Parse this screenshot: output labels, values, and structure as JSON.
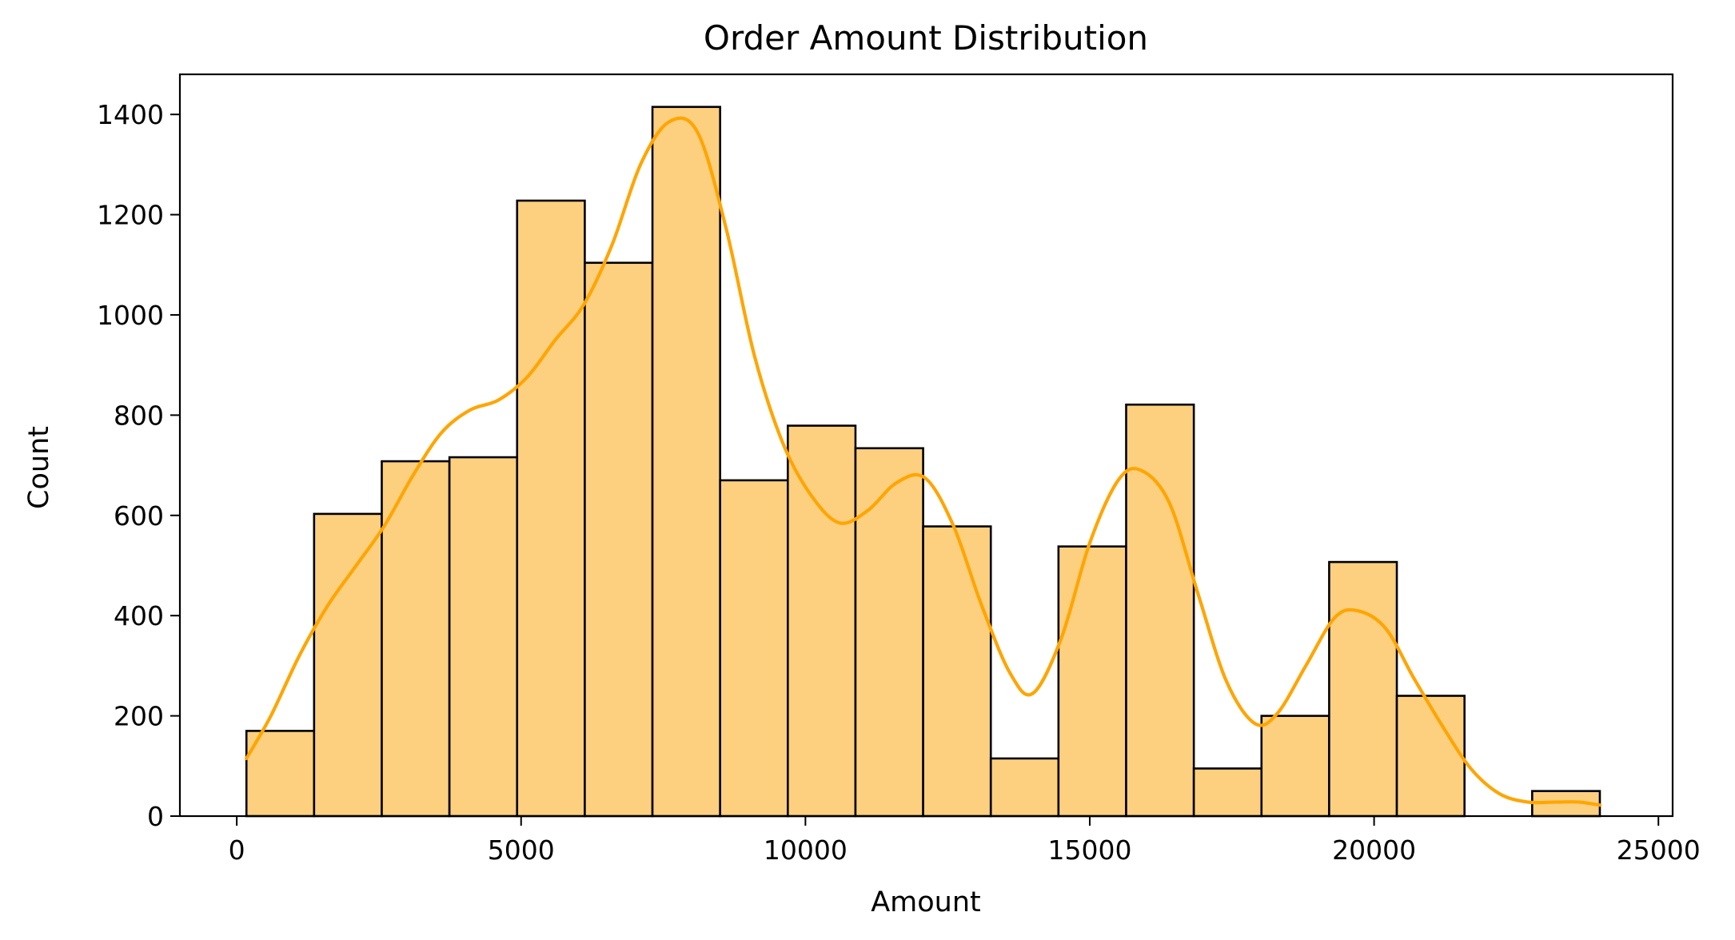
{
  "chart_data": {
    "type": "histogram",
    "title": "Order Amount Distribution",
    "xlabel": "Amount",
    "ylabel": "Count",
    "xlim": [
      -1000,
      25250
    ],
    "ylim": [
      0,
      1480
    ],
    "xticks": [
      0,
      5000,
      10000,
      15000,
      20000,
      25000
    ],
    "yticks": [
      0,
      200,
      400,
      600,
      800,
      1000,
      1200,
      1400
    ],
    "bar_fill": "#fdd080",
    "bar_edge": "#000000",
    "kde_color": "#ffa500",
    "bins": [
      {
        "x0": 170,
        "x1": 1360,
        "count": 170
      },
      {
        "x0": 1360,
        "x1": 2550,
        "count": 603
      },
      {
        "x0": 2550,
        "x1": 3740,
        "count": 708
      },
      {
        "x0": 3740,
        "x1": 4930,
        "count": 716
      },
      {
        "x0": 4930,
        "x1": 6120,
        "count": 1228
      },
      {
        "x0": 6120,
        "x1": 7310,
        "count": 1104
      },
      {
        "x0": 7310,
        "x1": 8500,
        "count": 1415
      },
      {
        "x0": 8500,
        "x1": 9690,
        "count": 670
      },
      {
        "x0": 9690,
        "x1": 10880,
        "count": 779
      },
      {
        "x0": 10880,
        "x1": 12070,
        "count": 734
      },
      {
        "x0": 12070,
        "x1": 13260,
        "count": 578
      },
      {
        "x0": 13260,
        "x1": 14450,
        "count": 115
      },
      {
        "x0": 14450,
        "x1": 15640,
        "count": 538
      },
      {
        "x0": 15640,
        "x1": 16830,
        "count": 821
      },
      {
        "x0": 16830,
        "x1": 18020,
        "count": 95
      },
      {
        "x0": 18020,
        "x1": 19210,
        "count": 200
      },
      {
        "x0": 19210,
        "x1": 20400,
        "count": 507
      },
      {
        "x0": 20400,
        "x1": 21590,
        "count": 240
      },
      {
        "x0": 21590,
        "x1": 22780,
        "count": 0
      },
      {
        "x0": 22780,
        "x1": 23970,
        "count": 50
      }
    ],
    "kde": [
      [
        170,
        115
      ],
      [
        600,
        200
      ],
      [
        1100,
        320
      ],
      [
        1600,
        420
      ],
      [
        2100,
        500
      ],
      [
        2600,
        580
      ],
      [
        3100,
        680
      ],
      [
        3600,
        765
      ],
      [
        4100,
        810
      ],
      [
        4600,
        830
      ],
      [
        5100,
        875
      ],
      [
        5600,
        950
      ],
      [
        6100,
        1020
      ],
      [
        6600,
        1140
      ],
      [
        7100,
        1300
      ],
      [
        7600,
        1385
      ],
      [
        8100,
        1365
      ],
      [
        8600,
        1175
      ],
      [
        9100,
        920
      ],
      [
        9600,
        745
      ],
      [
        10100,
        640
      ],
      [
        10600,
        585
      ],
      [
        11100,
        610
      ],
      [
        11600,
        665
      ],
      [
        12100,
        675
      ],
      [
        12600,
        580
      ],
      [
        13100,
        420
      ],
      [
        13600,
        285
      ],
      [
        14000,
        245
      ],
      [
        14500,
        355
      ],
      [
        15000,
        545
      ],
      [
        15500,
        670
      ],
      [
        15900,
        690
      ],
      [
        16400,
        625
      ],
      [
        16900,
        445
      ],
      [
        17400,
        270
      ],
      [
        17900,
        185
      ],
      [
        18300,
        205
      ],
      [
        18800,
        300
      ],
      [
        19300,
        395
      ],
      [
        19700,
        410
      ],
      [
        20200,
        375
      ],
      [
        20700,
        275
      ],
      [
        21200,
        180
      ],
      [
        21700,
        95
      ],
      [
        22200,
        45
      ],
      [
        22700,
        28
      ],
      [
        23200,
        28
      ],
      [
        23600,
        28
      ],
      [
        23970,
        22
      ]
    ]
  }
}
